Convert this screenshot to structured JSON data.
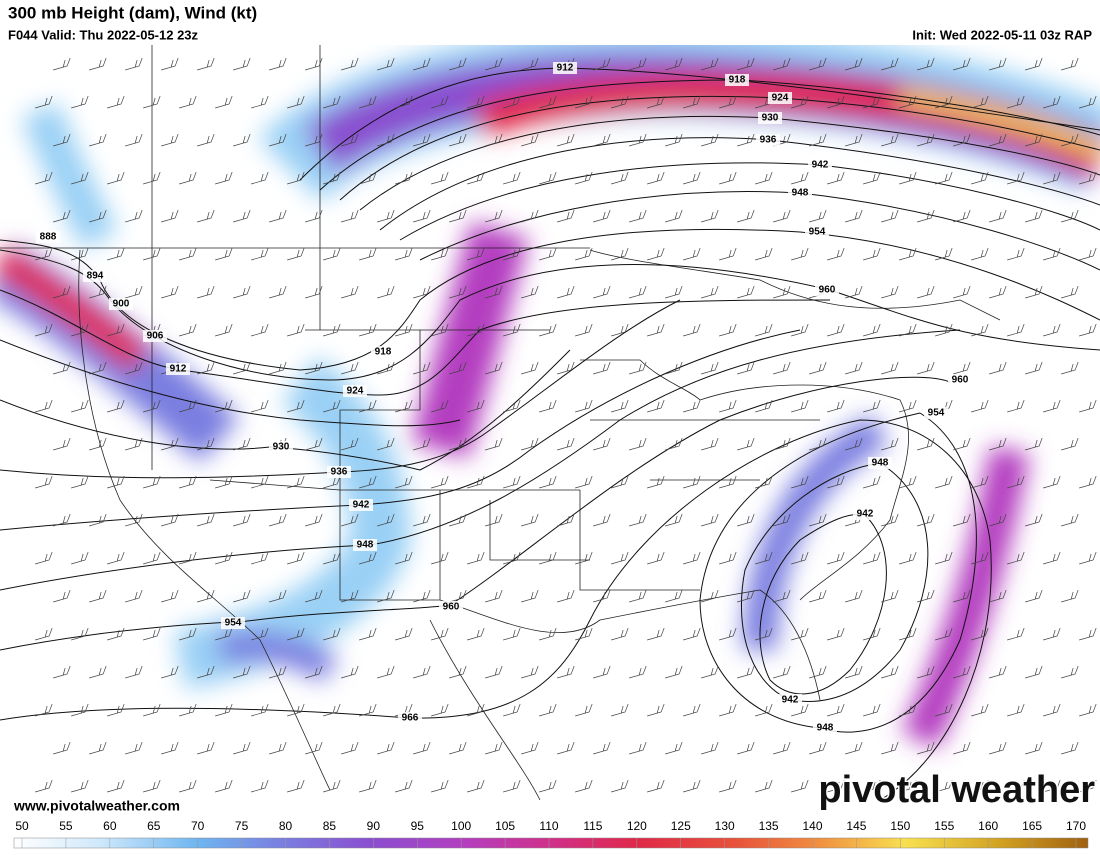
{
  "header": {
    "title": "300 mb Height (dam), Wind (kt)",
    "valid": "F044 Valid: Thu 2022-05-12 23z",
    "init": "Init: Wed 2022-05-11 03z RAP"
  },
  "contour_labels": [
    "912",
    "918",
    "924",
    "930",
    "936",
    "942",
    "948",
    "954",
    "960",
    "888",
    "894",
    "900",
    "906",
    "912",
    "918",
    "924",
    "930",
    "936",
    "942",
    "948",
    "954",
    "960",
    "966",
    "960",
    "954",
    "948",
    "942",
    "942",
    "948"
  ],
  "footer": {
    "website": "www.pivotalweather.com",
    "brand": "pivotal weather"
  },
  "colorbar": {
    "ticks": [
      50,
      55,
      60,
      65,
      70,
      75,
      80,
      85,
      90,
      95,
      100,
      105,
      110,
      115,
      120,
      125,
      130,
      135,
      140,
      145,
      150,
      155,
      160,
      165,
      170
    ]
  }
}
